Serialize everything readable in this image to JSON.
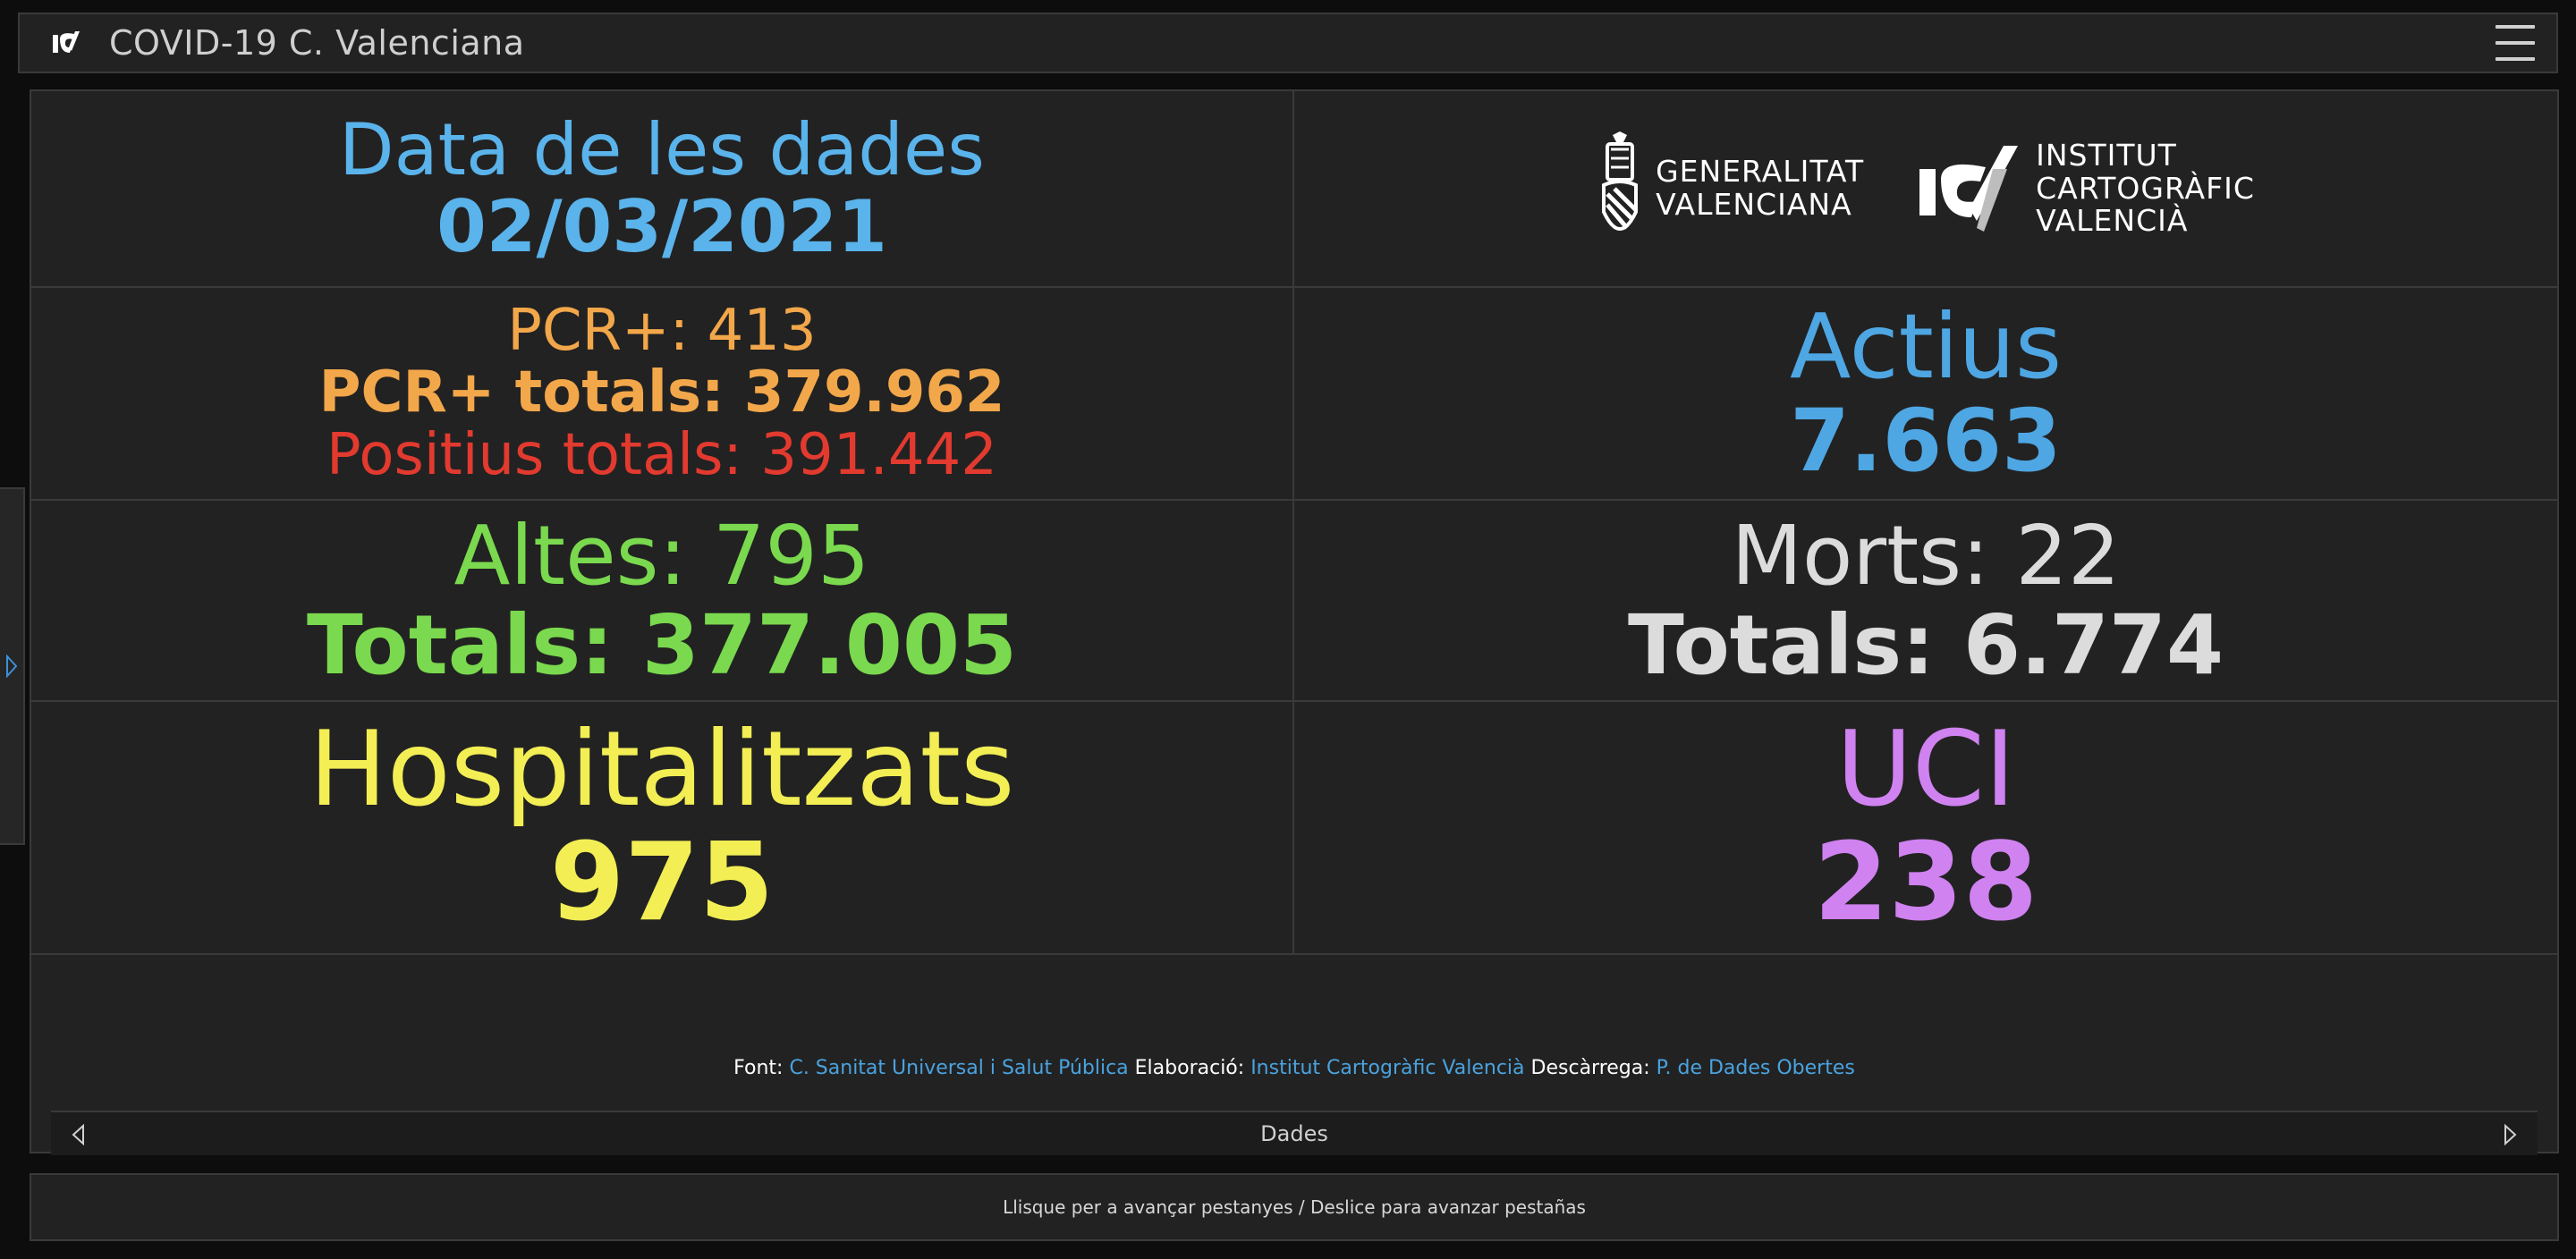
{
  "header": {
    "title": "COVID-19 C. Valenciana",
    "logo_icon": "icv-logo-icon",
    "menu_icon": "hamburger-menu-icon"
  },
  "stats": {
    "date_label": "Data de les dades",
    "date_value": "02/03/2021",
    "pcr_daily": "PCR+: 413",
    "pcr_total": "PCR+ totals: 379.962",
    "positives_total": "Positius totals: 391.442",
    "active_label": "Actius",
    "active_value": "7.663",
    "discharges_daily": "Altes: 795",
    "discharges_total": "Totals: 377.005",
    "deaths_daily": "Morts: 22",
    "deaths_total": "Totals: 6.774",
    "hospitalized_label": "Hospitalitzats",
    "hospitalized_value": "975",
    "icu_label": "UCI",
    "icu_value": "238"
  },
  "logos": {
    "gva_line1": "GENERALITAT",
    "gva_line2": "VALENCIANA",
    "icv_line1": "INSTITUT",
    "icv_line2": "CARTOGRÀFIC",
    "icv_line3": "VALENCIÀ"
  },
  "credits": {
    "font_label": "Font:",
    "font_link": "C. Sanitat Universal i Salut Pública",
    "elab_label": "Elaboració:",
    "elab_link": "Institut Cartogràfic Valencià",
    "download_label": "Descàrrega:",
    "download_link": "P. de Dades Obertes"
  },
  "tabbar": {
    "current_tab": "Dades"
  },
  "footer": {
    "hint": "Llisque per a avançar pestanyes / Deslice para avanzar pestañas"
  },
  "colors": {
    "blue": "#5ab3ea",
    "orange": "#f2a74a",
    "red": "#e23a2f",
    "green": "#7ad94e",
    "white": "#dcdcdc",
    "yellow": "#f2ee54",
    "purple": "#cf82f0",
    "link": "#4aa3df"
  }
}
